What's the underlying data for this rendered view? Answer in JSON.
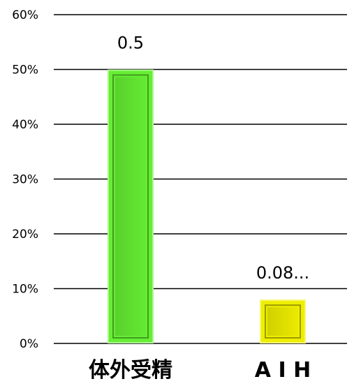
{
  "chart_data": {
    "type": "bar",
    "categories": [
      "体外受精",
      "A I H"
    ],
    "values": [
      0.5,
      0.08
    ],
    "data_labels": [
      "0.5",
      "0.08..."
    ],
    "ylim": [
      0,
      0.6
    ],
    "yticks": [
      0,
      0.1,
      0.2,
      0.3,
      0.4,
      0.5,
      0.6
    ],
    "ytick_labels": [
      "0%",
      "10%",
      "20%",
      "30%",
      "40%",
      "50%",
      "60%"
    ],
    "bar_colors": [
      "#66ee33",
      "#eeee00"
    ],
    "grid": true,
    "legend": "none"
  }
}
